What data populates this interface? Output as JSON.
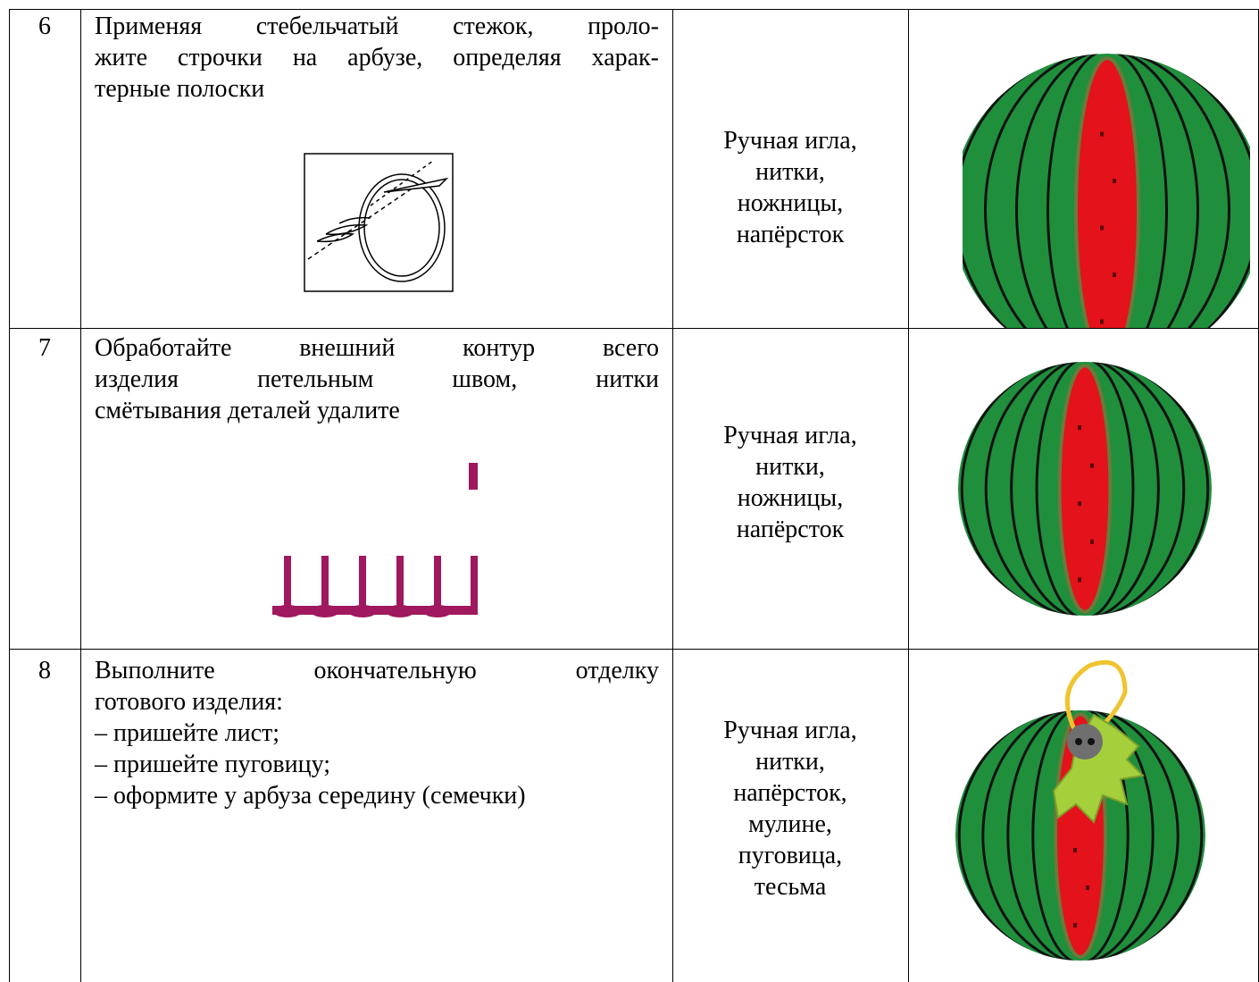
{
  "table": {
    "rows": [
      {
        "number": "6",
        "instruction": [
          "Применяя стебельчатый стежок, проло-",
          "жите строчки на арбузе, определяя харак-",
          "терные полоски"
        ],
        "tools": [
          "Ручная игла,",
          "нитки,",
          "ножницы,",
          "напёрсток"
        ]
      },
      {
        "number": "7",
        "instruction": [
          "Обработайте внешний контур всего",
          "изделия петельным швом, нитки",
          "смётывания деталей удалите"
        ],
        "tools": [
          "Ручная игла,",
          "нитки,",
          "ножницы,",
          "напёрсток"
        ]
      },
      {
        "number": "8",
        "instruction": [
          "Выполните окончательную отделку",
          "готового изделия:",
          "– пришейте лист;",
          "– пришейте пуговицу;",
          "– оформите у арбуза середину (семечки)"
        ],
        "tools": [
          "Ручная игла,",
          "нитки,",
          "напёрсток,",
          "мулине,",
          "пуговица,",
          "тесьма"
        ]
      }
    ]
  }
}
